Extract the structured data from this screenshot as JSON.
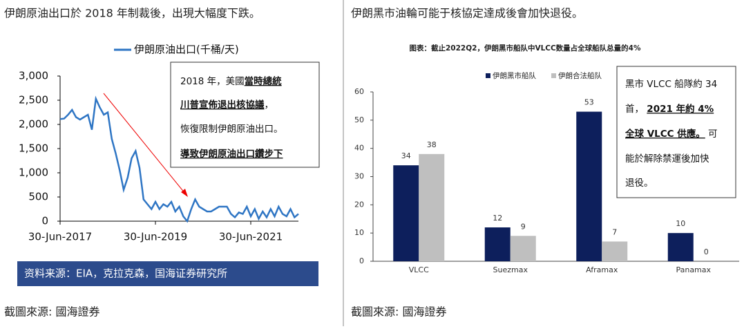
{
  "panels": [
    {
      "heading": "伊朗原油出口於 2018 年制裁後，出現大幅度下跌。",
      "caption": "截圖來源: 國海證券",
      "source": "资料来源：EIA，克拉克森，国海证券研究所",
      "annotation": [
        [
          "2018 年，美國",
          "當時總統"
        ],
        [
          "川普宣佈退出核協議",
          "，"
        ],
        [
          "恢復限制伊朗原油出口。"
        ],
        [
          "導致伊朗原油出口鑽步下"
        ]
      ]
    },
    {
      "heading": "伊朗黑市油輪可能于核協定達成後會加快退役。",
      "caption": "截圖來源: 國海證券",
      "annotation": [
        [
          "黑市 VLCC 船隊約 34"
        ],
        [
          "首， ",
          "2021 年約 4%"
        ],
        [
          "全球 VLCC 供應。",
          " 可"
        ],
        [
          "能於解除禁運後加快"
        ],
        [
          "退役。"
        ]
      ]
    }
  ],
  "chart_data": [
    {
      "type": "line",
      "categories": [
        "30-Jun-2017",
        null,
        null,
        null,
        null,
        null,
        null,
        null,
        null,
        null,
        null,
        null,
        null,
        null,
        null,
        null,
        null,
        null,
        null,
        null,
        null,
        null,
        null,
        null,
        "30-Jun-2019",
        null,
        null,
        null,
        null,
        null,
        null,
        null,
        null,
        null,
        null,
        null,
        null,
        null,
        null,
        null,
        null,
        null,
        null,
        null,
        null,
        null,
        null,
        null,
        "30-Jun-2021",
        null,
        null,
        null,
        null,
        null,
        null,
        null,
        null,
        null,
        null,
        null,
        null
      ],
      "series": [
        {
          "name": "伊朗原油出口(千桶/天)",
          "color": "#2e75c4",
          "values": [
            2110,
            2120,
            2200,
            2300,
            2150,
            2100,
            2150,
            2200,
            1890,
            2530,
            2350,
            2200,
            2250,
            1700,
            1400,
            1050,
            650,
            900,
            1300,
            1450,
            1100,
            450,
            350,
            250,
            400,
            250,
            350,
            300,
            400,
            200,
            300,
            100,
            0,
            250,
            450,
            300,
            250,
            200,
            200,
            250,
            300,
            300,
            300,
            150,
            80,
            180,
            150,
            300,
            100,
            250,
            50,
            200,
            80,
            250,
            100,
            300,
            150,
            100,
            250,
            80,
            150
          ]
        }
      ],
      "ylim": [
        0,
        3000
      ],
      "yticks": [
        0,
        500,
        {
          "value": 1000,
          "label": "1,000"
        },
        {
          "value": 1500,
          "label": "1,500"
        },
        {
          "value": 2000,
          "label": "2,000"
        },
        {
          "value": 2500,
          "label": "2,500"
        },
        {
          "value": 3000,
          "label": "3,000"
        }
      ]
    },
    {
      "type": "bar",
      "title": "图表：截止2022Q2，伊朗黑市船队中VLCC数量占全球船队总量的4%",
      "categories": [
        "VLCC",
        "Suezmax",
        "Aframax",
        "Panamax"
      ],
      "series": [
        {
          "name": "伊朗黑市船队",
          "color": "#0d1f5c",
          "values": [
            34,
            12,
            53,
            10
          ]
        },
        {
          "name": "伊朗合法船队",
          "color": "#bfbfbf",
          "values": [
            38,
            9,
            7,
            0
          ]
        }
      ],
      "ylim": [
        0,
        60
      ],
      "yticks": [
        0,
        10,
        20,
        30,
        40,
        50,
        60
      ]
    }
  ]
}
